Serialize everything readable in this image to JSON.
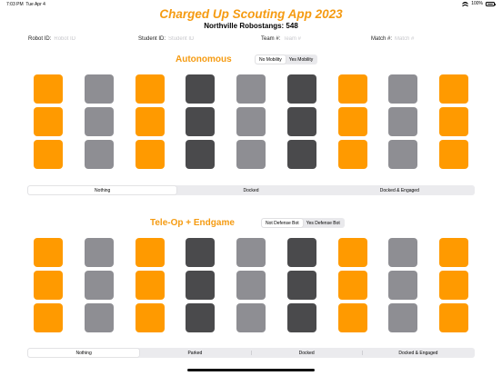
{
  "status_bar": {
    "time": "7:03 PM",
    "date": "Tue Apr 4",
    "battery": "100%"
  },
  "header": {
    "title": "Charged Up Scouting App 2023",
    "team": "Northville Robostangs: 548"
  },
  "fields": [
    {
      "label": "Robot ID:",
      "placeholder": "Robot ID",
      "value": ""
    },
    {
      "label": "Student ID:",
      "placeholder": "Student ID",
      "value": ""
    },
    {
      "label": "Team #:",
      "placeholder": "Team #",
      "value": ""
    },
    {
      "label": "Match #:",
      "placeholder": "Match #",
      "value": ""
    }
  ],
  "autonomous": {
    "title": "Autonomous",
    "mobility_toggle": [
      "No Mobility",
      "Yes Mobility"
    ],
    "mobility_selected": 0,
    "charge_options": [
      "Nothing",
      "Docked",
      "Docked & Engaged"
    ],
    "charge_selected": 0
  },
  "teleop": {
    "title": "Tele-Op + Endgame",
    "defense_toggle": [
      "Not Defense Bot",
      "Yes Defense Bot"
    ],
    "defense_selected": 0,
    "charge_options": [
      "Nothing",
      "Parked",
      "Docked",
      "Docked & Engaged"
    ],
    "charge_selected": 0
  },
  "grid_columns": [
    "cone",
    "cube",
    "cone",
    "cone",
    "cube",
    "cone",
    "cone",
    "cube",
    "cone"
  ],
  "grid_rows": [
    "top",
    "middle",
    "bottom"
  ],
  "colors": {
    "accent": "#f59b12",
    "cone": "#ff9a00",
    "cube": "#8e8e93",
    "dark": "#4a4a4c"
  },
  "grid_column_colors": [
    "#ff9a00",
    "#8e8e93",
    "#ff9a00",
    "#4a4a4c",
    "#8e8e93",
    "#4a4a4c",
    "#ff9a00",
    "#8e8e93",
    "#ff9a00"
  ]
}
